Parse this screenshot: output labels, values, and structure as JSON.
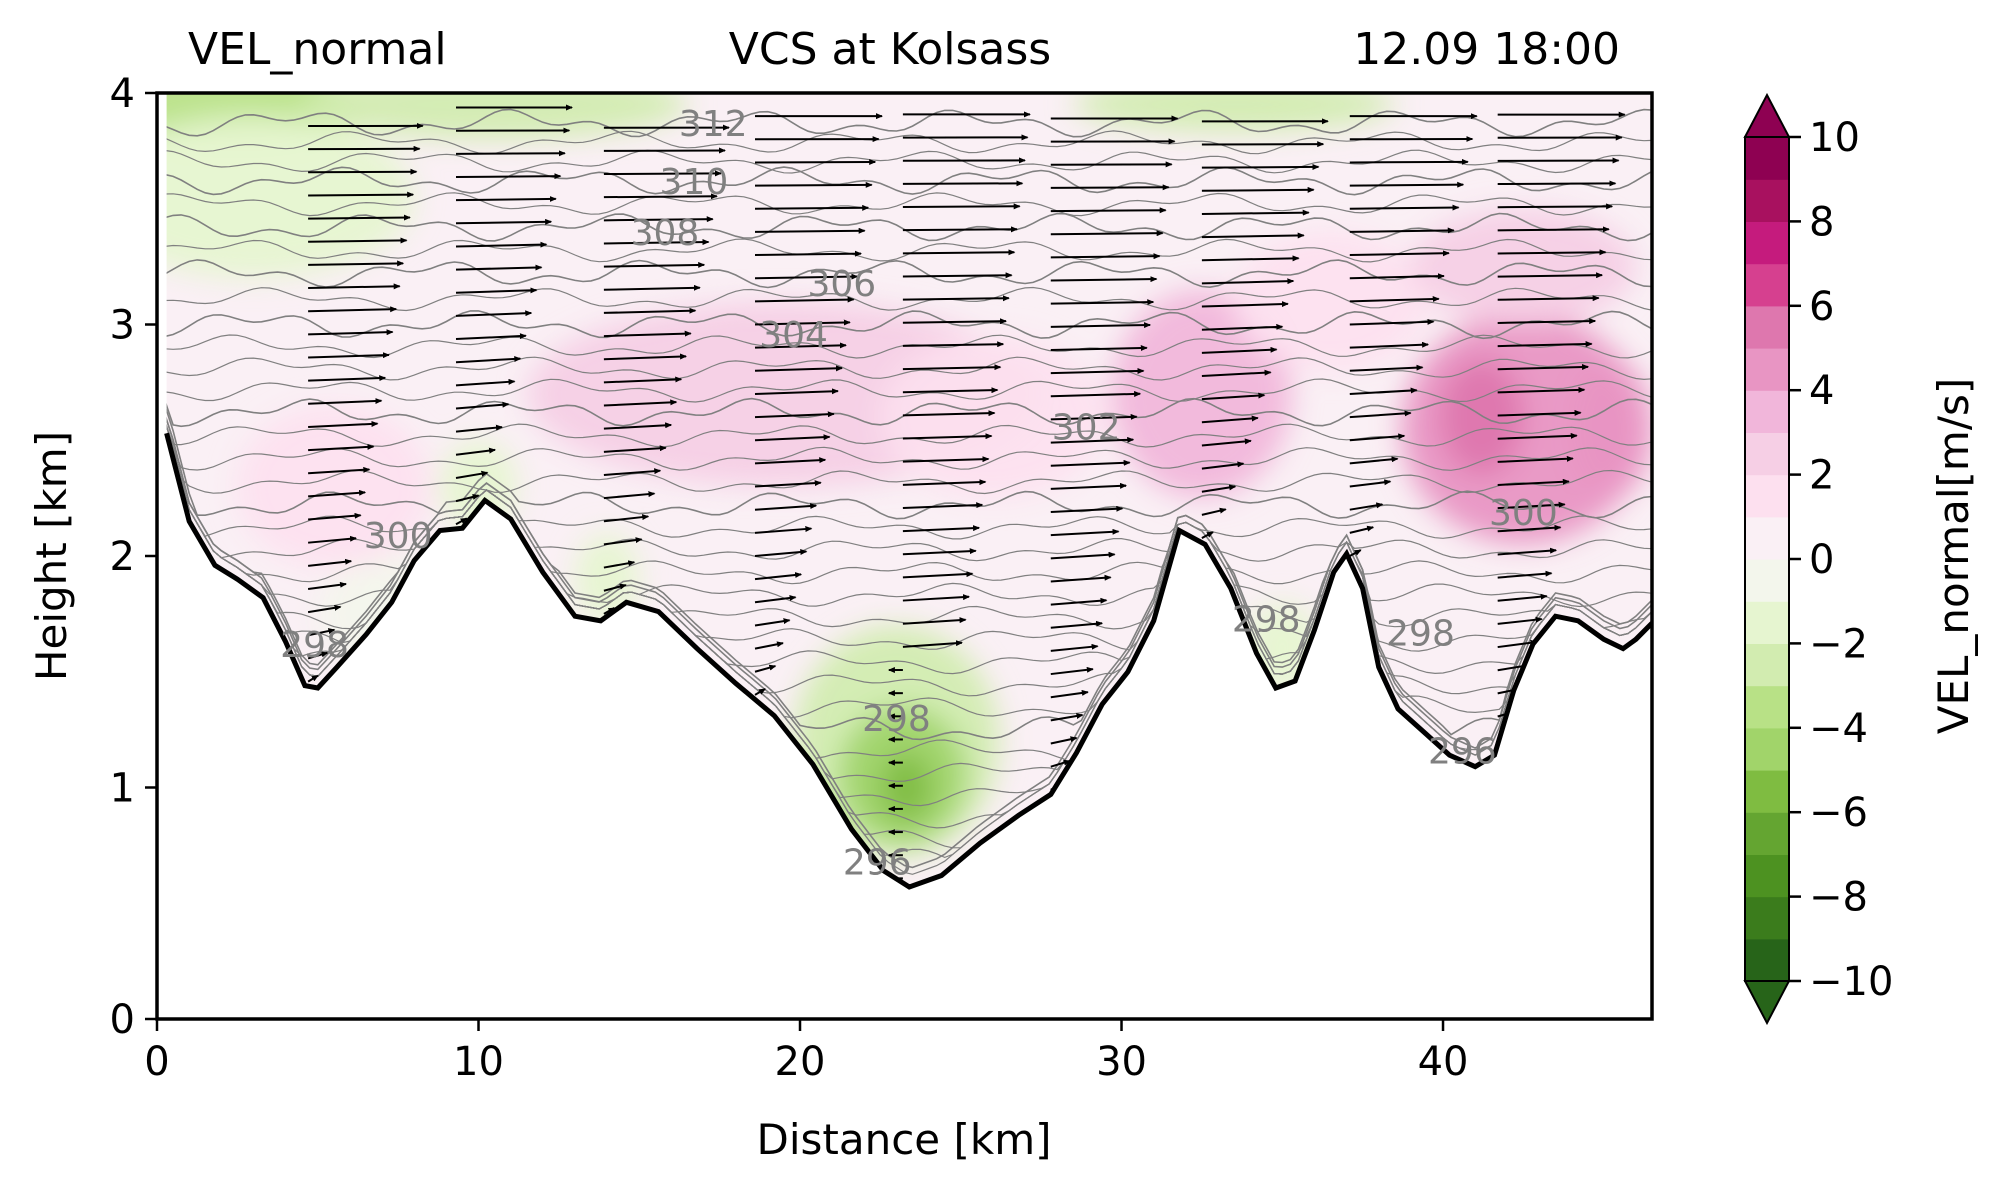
{
  "chart_data": {
    "type": "contour",
    "title_left": "VEL_normal",
    "title_center": "VCS at Kolsass",
    "title_right": "12.09 18:00",
    "xlabel": "Distance [km]",
    "ylabel": "Height [km]",
    "xlim": [
      0,
      46.5
    ],
    "ylim": [
      0,
      4
    ],
    "xticks": [
      0,
      10,
      20,
      30,
      40
    ],
    "yticks": [
      0,
      1,
      2,
      3,
      4
    ],
    "xtick_labels": [
      "0",
      "10",
      "20",
      "30",
      "40"
    ],
    "ytick_labels": [
      "0",
      "1",
      "2",
      "3",
      "4"
    ],
    "colorbar": {
      "label": "VEL_normal[m/s]",
      "vmin": -10,
      "vmax": 10,
      "step": 1,
      "ticks": [
        10,
        8,
        6,
        4,
        2,
        0,
        -2,
        -4,
        -6,
        -8,
        -10
      ],
      "tick_labels": [
        "10",
        "8",
        "6",
        "4",
        "2",
        "0",
        "−2",
        "−4",
        "−6",
        "−8",
        "−10"
      ],
      "colors_high": [
        "#8e0152",
        "#a8115f",
        "#c51b7d",
        "#d6408f",
        "#de77ae",
        "#e895c3",
        "#f1b6da",
        "#f6cfe5",
        "#fde0ef",
        "#faf0f5"
      ],
      "colors_low": [
        "#f3f6ec",
        "#e6f5d0",
        "#d2ecb0",
        "#b8e186",
        "#a1d46a",
        "#7fbc41",
        "#64a531",
        "#4d9221",
        "#3b7c1c",
        "#276419"
      ]
    },
    "terrain": {
      "x": [
        0.3,
        1.0,
        1.8,
        2.5,
        3.3,
        4.0,
        4.6,
        5.0,
        5.6,
        6.5,
        7.3,
        8.0,
        8.8,
        9.5,
        10.2,
        11.0,
        12.0,
        13.0,
        13.8,
        14.6,
        15.6,
        16.8,
        18.0,
        19.2,
        20.4,
        21.6,
        22.6,
        23.4,
        24.4,
        25.6,
        26.8,
        27.8,
        28.6,
        29.4,
        30.2,
        31.0,
        31.8,
        32.6,
        33.4,
        34.2,
        34.8,
        35.4,
        36.0,
        36.6,
        37.0,
        37.5,
        38.0,
        38.6,
        39.4,
        40.2,
        41.0,
        41.6,
        42.2,
        42.8,
        43.5,
        44.2,
        45.0,
        45.6,
        46.0,
        46.5
      ],
      "height": [
        2.53,
        2.15,
        1.96,
        1.9,
        1.82,
        1.63,
        1.44,
        1.43,
        1.52,
        1.66,
        1.8,
        1.98,
        2.11,
        2.12,
        2.24,
        2.16,
        1.93,
        1.74,
        1.72,
        1.8,
        1.76,
        1.6,
        1.45,
        1.31,
        1.1,
        0.82,
        0.64,
        0.57,
        0.62,
        0.76,
        0.88,
        0.97,
        1.15,
        1.36,
        1.5,
        1.72,
        2.11,
        2.05,
        1.86,
        1.58,
        1.43,
        1.46,
        1.68,
        1.93,
        2.01,
        1.86,
        1.52,
        1.34,
        1.24,
        1.14,
        1.09,
        1.14,
        1.42,
        1.62,
        1.74,
        1.72,
        1.64,
        1.6,
        1.64,
        1.71
      ]
    },
    "velocity_blobs": [
      {
        "x": 2.5,
        "y": 3.95,
        "rx": 4.0,
        "ry": 0.18,
        "value": -3.0
      },
      {
        "x": 10.5,
        "y": 3.95,
        "rx": 6.0,
        "ry": 0.15,
        "value": -2.5
      },
      {
        "x": 33.5,
        "y": 3.95,
        "rx": 5.0,
        "ry": 0.12,
        "value": -2.0
      },
      {
        "x": 3.0,
        "y": 3.55,
        "rx": 5.0,
        "ry": 0.35,
        "value": -1.5
      },
      {
        "x": 5.5,
        "y": 2.3,
        "rx": 3.0,
        "ry": 0.35,
        "value": 1.5
      },
      {
        "x": 19.5,
        "y": 2.7,
        "rx": 8.0,
        "ry": 0.4,
        "value": 2.2
      },
      {
        "x": 26.0,
        "y": 2.6,
        "rx": 3.5,
        "ry": 0.35,
        "value": 1.8
      },
      {
        "x": 32.5,
        "y": 2.7,
        "rx": 2.8,
        "ry": 0.45,
        "value": 3.6
      },
      {
        "x": 36.5,
        "y": 3.1,
        "rx": 3.0,
        "ry": 0.3,
        "value": 2.0
      },
      {
        "x": 42.5,
        "y": 2.55,
        "rx": 3.8,
        "ry": 0.5,
        "value": 4.5
      },
      {
        "x": 41.2,
        "y": 2.6,
        "rx": 1.3,
        "ry": 0.25,
        "value": 6.0
      },
      {
        "x": 45.2,
        "y": 2.55,
        "rx": 1.3,
        "ry": 0.3,
        "value": 5.0
      },
      {
        "x": 42.5,
        "y": 3.25,
        "rx": 3.5,
        "ry": 0.25,
        "value": 2.5
      },
      {
        "x": 23.0,
        "y": 1.2,
        "rx": 3.2,
        "ry": 0.5,
        "value": -2.5
      },
      {
        "x": 23.2,
        "y": 1.05,
        "rx": 2.0,
        "ry": 0.3,
        "value": -4.2
      },
      {
        "x": 23.3,
        "y": 1.0,
        "rx": 0.8,
        "ry": 0.15,
        "value": -5.5
      },
      {
        "x": 10.0,
        "y": 2.3,
        "rx": 1.2,
        "ry": 0.2,
        "value": -1.5
      },
      {
        "x": 14.0,
        "y": 1.9,
        "rx": 1.0,
        "ry": 0.2,
        "value": -1.2
      },
      {
        "x": 35.0,
        "y": 1.6,
        "rx": 1.2,
        "ry": 0.2,
        "value": -1.0
      },
      {
        "x": 7.5,
        "y": 1.75,
        "rx": 2.5,
        "ry": 0.25,
        "value": -0.8
      }
    ],
    "theta_levels": [
      {
        "value": 296,
        "base": 0.5,
        "label": "296",
        "label_pos": [
          [
            22.4,
            0.68
          ],
          [
            40.6,
            1.16
          ]
        ]
      },
      {
        "value": 298,
        "base": 1.25,
        "label": "298",
        "label_pos": [
          [
            4.9,
            1.62
          ],
          [
            23.0,
            1.3
          ],
          [
            34.5,
            1.73
          ],
          [
            39.3,
            1.67
          ]
        ]
      },
      {
        "value": 300,
        "base": 2.22,
        "label": "300",
        "label_pos": [
          [
            7.5,
            2.09
          ],
          [
            42.5,
            2.19
          ]
        ]
      },
      {
        "value": 302,
        "base": 2.62,
        "label": "302",
        "label_pos": [
          [
            28.9,
            2.56
          ]
        ]
      },
      {
        "value": 304,
        "base": 3.0,
        "label": "304",
        "label_pos": [
          [
            19.8,
            2.96
          ]
        ]
      },
      {
        "value": 306,
        "base": 3.22,
        "label": "306",
        "label_pos": [
          [
            21.3,
            3.18
          ]
        ]
      },
      {
        "value": 308,
        "base": 3.42,
        "label": "308",
        "label_pos": [
          [
            15.8,
            3.4
          ]
        ]
      },
      {
        "value": 310,
        "base": 3.62,
        "label": "310",
        "label_pos": [
          [
            16.7,
            3.62
          ]
        ]
      },
      {
        "value": 312,
        "base": 3.87,
        "label": "312",
        "label_pos": [
          [
            17.3,
            3.87
          ]
        ]
      }
    ],
    "vector_columns": [
      4.7,
      9.3,
      13.9,
      18.6,
      23.2,
      27.8,
      32.5,
      37.1,
      41.7
    ],
    "vector_top_speed": [
      10,
      10,
      11,
      11,
      11,
      11,
      11,
      11,
      11
    ]
  }
}
